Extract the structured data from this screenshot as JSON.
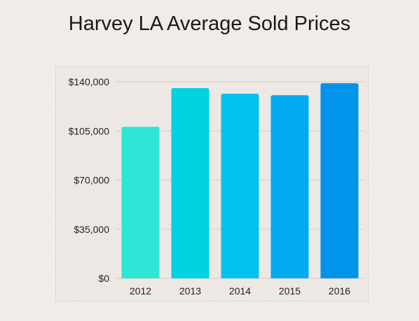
{
  "title": "Harvey LA Average Sold Prices",
  "chart_data": {
    "type": "bar",
    "title": "Harvey LA Average Sold Prices",
    "categories": [
      "2012",
      "2013",
      "2014",
      "2015",
      "2016"
    ],
    "values": [
      108000,
      135500,
      131500,
      130500,
      139000
    ],
    "xlabel": "",
    "ylabel": "",
    "ylim": [
      0,
      140000
    ],
    "yticks": [
      0,
      35000,
      70000,
      105000,
      140000
    ],
    "ytick_labels": [
      "$0",
      "$35,000",
      "$70,000",
      "$105,000",
      "$140,000"
    ],
    "grid": true,
    "legend": "none",
    "colors": [
      "#2ee6d6",
      "#00d2e2",
      "#00c2ec",
      "#00acef",
      "#0094ea"
    ]
  }
}
